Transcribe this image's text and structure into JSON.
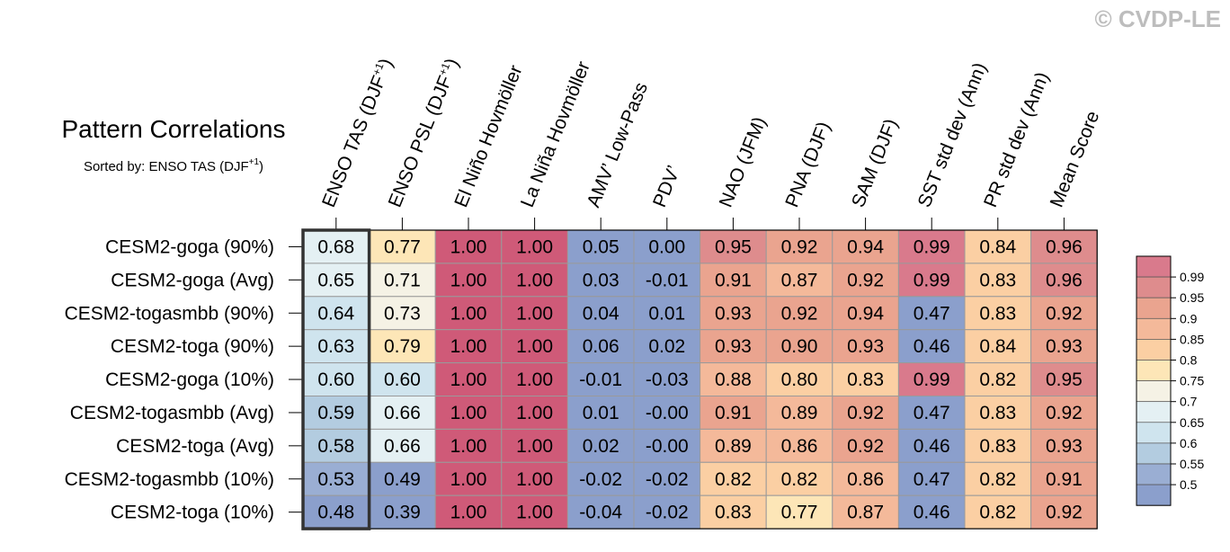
{
  "watermark": "© CVDP-LE",
  "chart_data": {
    "type": "heatmap",
    "title": "Pattern Correlations",
    "subtitle": {
      "prefix": "Sorted by: ENSO TAS (DJF",
      "sup": "+1",
      "suffix": ")"
    },
    "sorted_column": 0,
    "columns": [
      {
        "label": "ENSO TAS (DJF",
        "sup": "+1",
        "suffix": ")"
      },
      {
        "label": "ENSO PSL (DJF",
        "sup": "+1",
        "suffix": ")"
      },
      {
        "label": "El Niño Hovmöller"
      },
      {
        "label": "La Niña Hovmöller"
      },
      {
        "label": "AMV’ Low-Pass"
      },
      {
        "label": "PDV’"
      },
      {
        "label": "NAO (JFM)"
      },
      {
        "label": "PNA (DJF)"
      },
      {
        "label": "SAM (DJF)"
      },
      {
        "label": "SST std dev (Ann)"
      },
      {
        "label": "PR std dev (Ann)"
      },
      {
        "label": "Mean Score"
      }
    ],
    "rows": [
      "CESM2-goga (90%)",
      "CESM2-goga (Avg)",
      "CESM2-togasmbb (90%)",
      "CESM2-toga (90%)",
      "CESM2-goga (10%)",
      "CESM2-togasmbb (Avg)",
      "CESM2-toga (Avg)",
      "CESM2-togasmbb (10%)",
      "CESM2-toga (10%)"
    ],
    "values": [
      [
        "0.68",
        "0.77",
        "1.00",
        "1.00",
        "0.05",
        "0.00",
        "0.95",
        "0.92",
        "0.94",
        "0.99",
        "0.84",
        "0.96"
      ],
      [
        "0.65",
        "0.71",
        "1.00",
        "1.00",
        "0.03",
        "-0.01",
        "0.91",
        "0.87",
        "0.92",
        "0.99",
        "0.83",
        "0.96"
      ],
      [
        "0.64",
        "0.73",
        "1.00",
        "1.00",
        "0.04",
        "0.01",
        "0.93",
        "0.92",
        "0.94",
        "0.47",
        "0.83",
        "0.92"
      ],
      [
        "0.63",
        "0.79",
        "1.00",
        "1.00",
        "0.06",
        "0.02",
        "0.93",
        "0.90",
        "0.93",
        "0.46",
        "0.84",
        "0.93"
      ],
      [
        "0.60",
        "0.60",
        "1.00",
        "1.00",
        "-0.01",
        "-0.03",
        "0.88",
        "0.80",
        "0.83",
        "0.99",
        "0.82",
        "0.95"
      ],
      [
        "0.59",
        "0.66",
        "1.00",
        "1.00",
        "0.01",
        "-0.00",
        "0.91",
        "0.89",
        "0.92",
        "0.47",
        "0.83",
        "0.92"
      ],
      [
        "0.58",
        "0.66",
        "1.00",
        "1.00",
        "0.02",
        "-0.00",
        "0.89",
        "0.86",
        "0.92",
        "0.46",
        "0.83",
        "0.93"
      ],
      [
        "0.53",
        "0.49",
        "1.00",
        "1.00",
        "-0.02",
        "-0.02",
        "0.82",
        "0.82",
        "0.86",
        "0.47",
        "0.82",
        "0.91"
      ],
      [
        "0.48",
        "0.39",
        "1.00",
        "1.00",
        "-0.04",
        "-0.02",
        "0.83",
        "0.77",
        "0.87",
        "0.46",
        "0.82",
        "0.92"
      ]
    ],
    "colorbar": {
      "levels": [
        "0.99",
        "0.95",
        "0.9",
        "0.85",
        "0.8",
        "0.75",
        "0.7",
        "0.65",
        "0.6",
        "0.55",
        "0.5"
      ],
      "colors": [
        "#d97a8c",
        "#de8c8d",
        "#eaa48f",
        "#f4b99a",
        "#fbcfa3",
        "#fde6b7",
        "#f5f2e5",
        "#e4f0f3",
        "#cfe4ee",
        "#b3cce0",
        "#9aaed3",
        "#8b9fcc"
      ],
      "thresholds": [
        0.99,
        0.95,
        0.9,
        0.85,
        0.8,
        0.75,
        0.7,
        0.65,
        0.6,
        0.55,
        0.5
      ]
    },
    "saturated_color": "#cf5a78"
  }
}
